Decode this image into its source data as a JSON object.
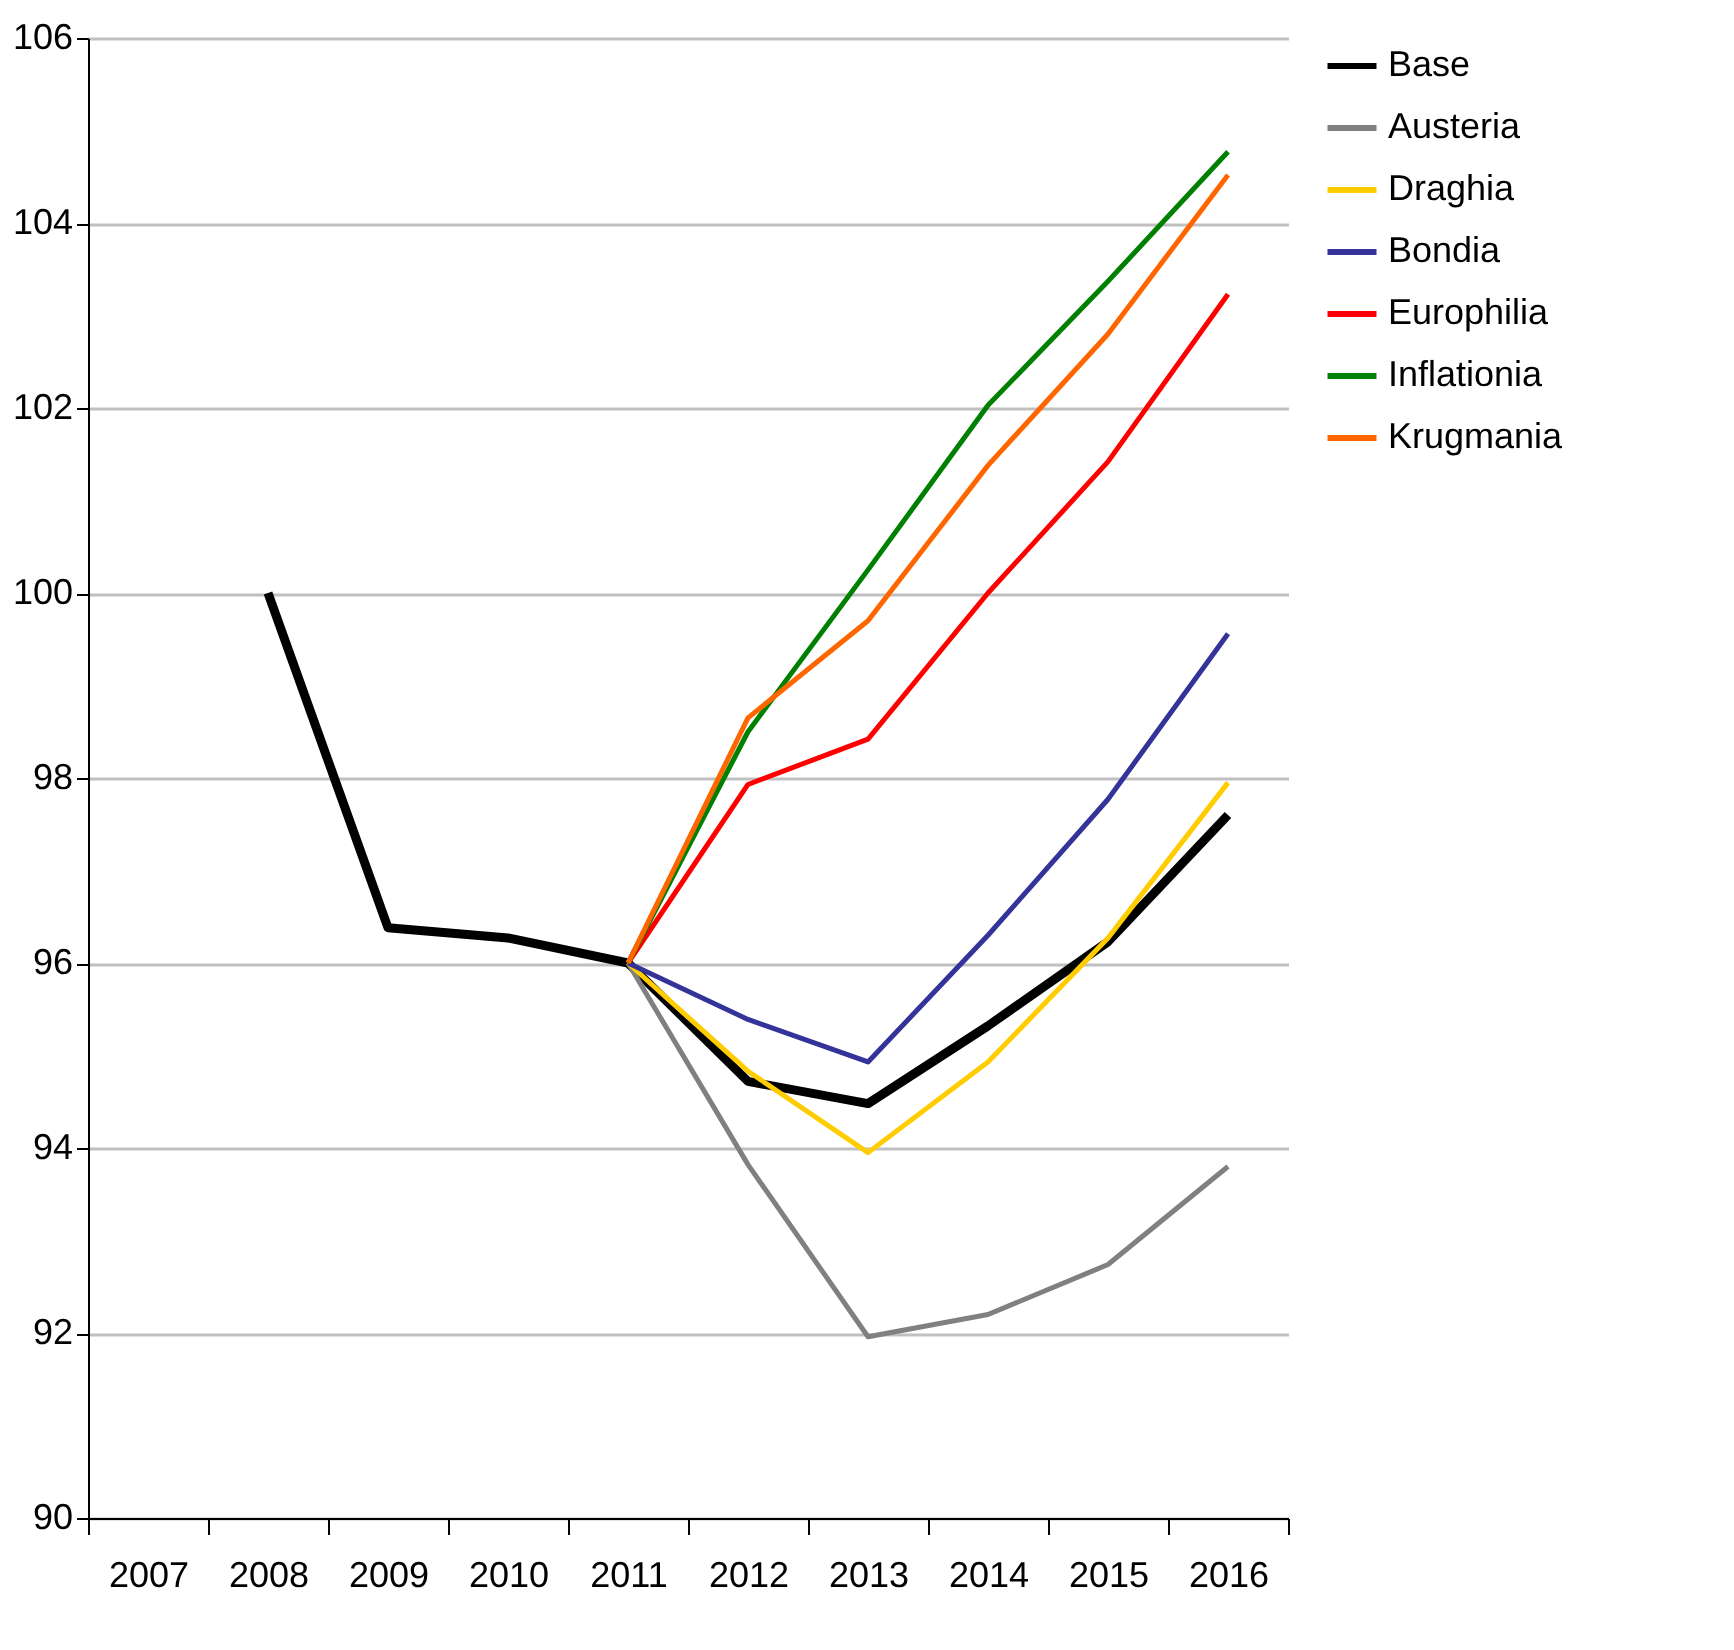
{
  "chart_data": {
    "type": "line",
    "categories": [
      "2007",
      "2008",
      "2009",
      "2010",
      "2011",
      "2012",
      "2013",
      "2014",
      "2015",
      "2016"
    ],
    "ylim": [
      90,
      106
    ],
    "yticks": [
      90,
      92,
      94,
      96,
      98,
      100,
      102,
      104,
      106
    ],
    "grid": "y",
    "legend": "right",
    "line_style": "solid",
    "series": [
      {
        "name": "Base",
        "color": "#000000",
        "values": [
          null,
          100,
          96.38,
          96.27,
          96,
          94.72,
          94.48,
          95.32,
          96.23,
          97.6
        ]
      },
      {
        "name": "Austeria",
        "color": "#808080",
        "values": [
          null,
          null,
          null,
          null,
          96,
          93.82,
          91.96,
          92.2,
          92.74,
          93.8
        ]
      },
      {
        "name": "Draghia",
        "color": "#ffcc00",
        "values": [
          null,
          null,
          null,
          null,
          96,
          94.83,
          93.95,
          94.93,
          96.27,
          97.95
        ]
      },
      {
        "name": "Bondia",
        "color": "#333399",
        "values": [
          null,
          null,
          null,
          null,
          96,
          95.39,
          94.93,
          96.3,
          97.77,
          99.56
        ]
      },
      {
        "name": "Europhilia",
        "color": "#ff0000",
        "values": [
          null,
          null,
          null,
          null,
          96,
          97.93,
          98.42,
          100,
          101.42,
          103.23
        ]
      },
      {
        "name": "Inflationia",
        "color": "#008000",
        "values": [
          null,
          null,
          null,
          null,
          96,
          98.5,
          100.25,
          102.03,
          103.37,
          104.77
        ]
      },
      {
        "name": "Krugmania",
        "color": "#ff6600",
        "values": [
          null,
          null,
          null,
          null,
          96,
          98.65,
          99.7,
          101.38,
          102.8,
          104.52
        ]
      }
    ]
  }
}
